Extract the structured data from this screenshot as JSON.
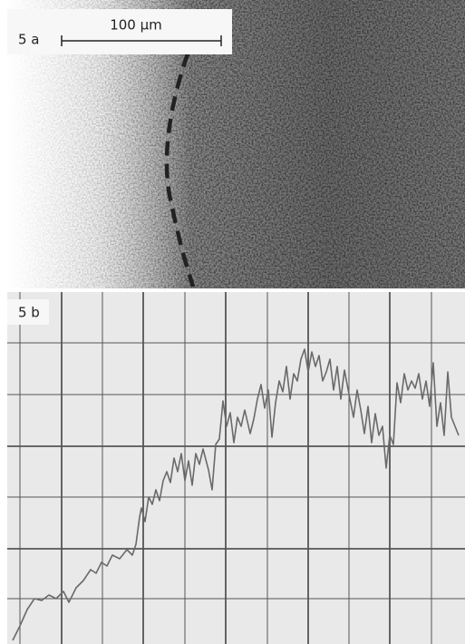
{
  "panel_a": {
    "label": "5 a",
    "scale_bar": "100 μm"
  },
  "panel_b": {
    "label": "5 b"
  }
}
